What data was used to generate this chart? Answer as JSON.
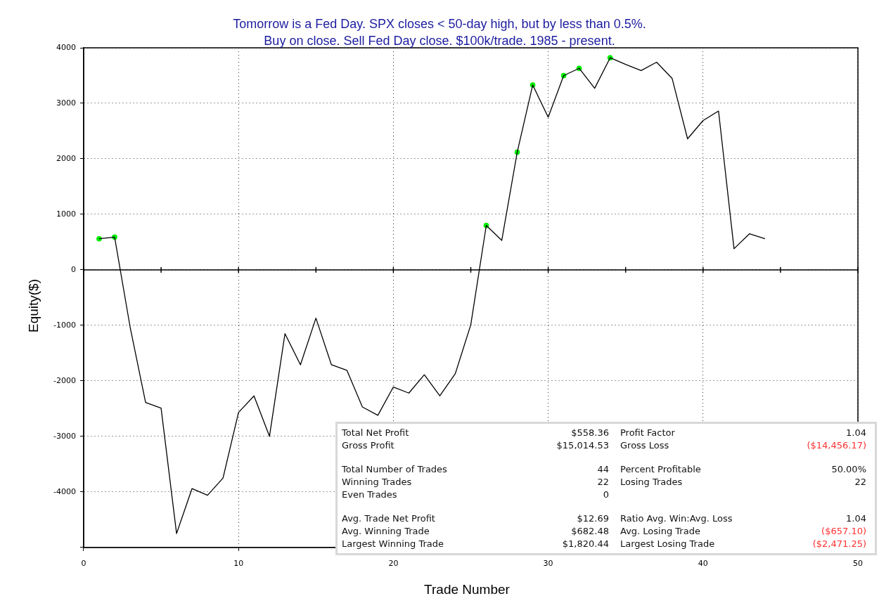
{
  "chart_data": {
    "type": "line",
    "title": "Tomorrow is a Fed Day. SPX closes < 50-day high, but by less than 0.5%.",
    "subtitle": "Buy on close. Sell Fed Day close. $100k/trade. 1985 - present.",
    "xlabel": "Trade Number",
    "ylabel": "Equity($)",
    "xlim": [
      0,
      50
    ],
    "xticks": [
      0,
      10,
      20,
      30,
      40,
      50
    ],
    "ylim": [
      -5000,
      4000
    ],
    "yticks": [
      {
        "value": -5000,
        "label": null
      },
      -4000,
      -3000,
      -2000,
      -1000,
      0,
      1000,
      2000,
      3000,
      4000
    ],
    "grid": true,
    "legend": false,
    "ref_lines": [
      {
        "axis": "y",
        "value": 0,
        "color": "#000000",
        "line_style": "solid"
      }
    ],
    "series": [
      {
        "color": "#000000",
        "x": [
          1,
          2,
          3,
          4,
          5,
          6,
          7,
          8,
          9,
          10,
          11,
          12,
          13,
          14,
          15,
          16,
          17,
          18,
          19,
          20,
          21,
          22,
          23,
          24,
          25,
          26,
          27,
          28,
          29,
          30,
          31,
          32,
          33,
          34,
          35,
          36,
          37,
          38,
          39,
          40,
          41,
          42,
          43,
          44
        ],
        "values": [
          560,
          590,
          -1030,
          -2390,
          -2490,
          -4750,
          -3940,
          -4060,
          -3750,
          -2570,
          -2270,
          -3000,
          -1150,
          -1710,
          -870,
          -1710,
          -1810,
          -2470,
          -2620,
          -2110,
          -2220,
          -1890,
          -2270,
          -1870,
          -990,
          800,
          530,
          2120,
          3330,
          2750,
          3500,
          3630,
          3270,
          3820,
          3700,
          3590,
          3740,
          3450,
          2360,
          2690,
          2860,
          380,
          650,
          560
        ]
      },
      {
        "type": "scatter",
        "color": "#00ee00",
        "marker": "circle",
        "x": [
          1,
          2,
          26,
          28,
          29,
          31,
          32,
          34
        ],
        "values": [
          560,
          590,
          800,
          2120,
          3330,
          3500,
          3630,
          3820
        ]
      }
    ],
    "annotations": [
      "Total Net Profit",
      "$558.36",
      "Profit Factor",
      "1.04",
      "Gross Profit",
      "$15,014.53",
      "Gross Loss",
      "($14,456.17)",
      "Total Number of Trades",
      "44",
      "Percent Profitable",
      "50.00%",
      "Winning Trades",
      "22",
      "Losing Trades",
      "22",
      "Even Trades",
      "0",
      "Avg. Trade Net Profit",
      "$12.69",
      "Ratio Avg. Win:Avg. Loss",
      "1.04",
      "Avg. Winning Trade",
      "$682.48",
      "Avg. Losing Trade",
      "($657.10)",
      "Largest Winning Trade",
      "$1,820.44",
      "Largest Losing Trade",
      "($2,471.25)"
    ]
  }
}
